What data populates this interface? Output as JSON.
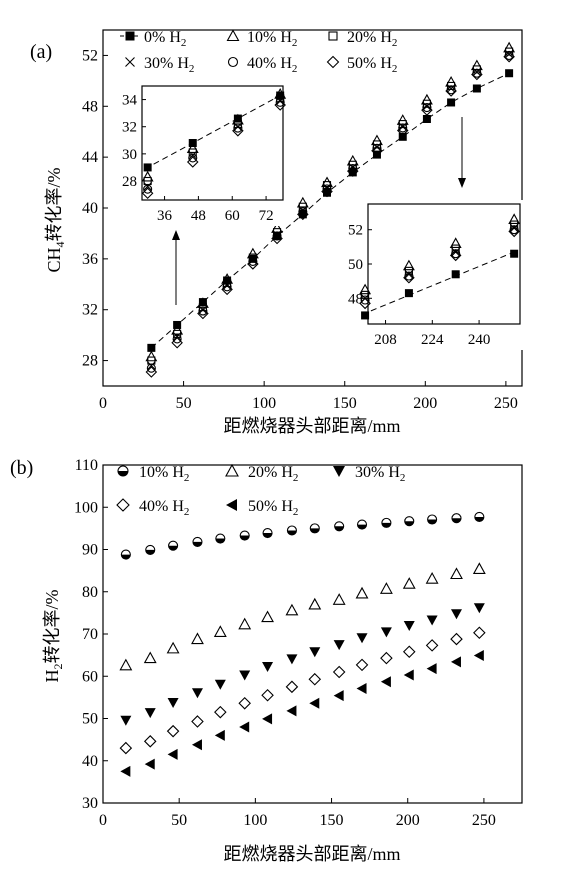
{
  "chart_data": [
    {
      "panel": "(a)",
      "type": "scatter",
      "xlabel": "距燃烧器头部距离/mm",
      "ylabel": "CH4转化率/%",
      "xlim": [
        0,
        260
      ],
      "ylim": [
        26,
        54
      ],
      "xticks": [
        0,
        50,
        100,
        150,
        200,
        250
      ],
      "yticks": [
        28,
        32,
        36,
        40,
        44,
        48,
        52
      ],
      "legend_placement": "top",
      "x": [
        30,
        46,
        62,
        77,
        93,
        108,
        124,
        139,
        155,
        170,
        186,
        201,
        216,
        232,
        252
      ],
      "series": [
        {
          "name": "0% H2",
          "marker": "square-filled",
          "fit_line": true,
          "values": [
            29.0,
            30.8,
            32.6,
            34.3,
            36.0,
            37.8,
            39.5,
            41.2,
            42.8,
            44.2,
            45.6,
            47.0,
            48.3,
            49.4,
            50.6
          ]
        },
        {
          "name": "10% H2",
          "marker": "triangle-open",
          "values": [
            28.3,
            30.4,
            32.5,
            34.4,
            36.4,
            38.4,
            40.4,
            42.0,
            43.7,
            45.3,
            46.9,
            48.5,
            49.9,
            51.2,
            52.6
          ]
        },
        {
          "name": "20% H2",
          "marker": "square-open",
          "values": [
            28.0,
            30.1,
            32.2,
            34.1,
            36.1,
            38.1,
            40.1,
            41.8,
            43.4,
            45.0,
            46.6,
            48.2,
            49.6,
            50.9,
            52.3
          ]
        },
        {
          "name": "30% H2",
          "marker": "x",
          "values": [
            27.6,
            29.9,
            32.0,
            33.9,
            35.9,
            37.9,
            39.8,
            41.6,
            43.2,
            44.8,
            46.4,
            48.0,
            49.4,
            50.7,
            52.1
          ]
        },
        {
          "name": "40% H2",
          "marker": "circle-open",
          "values": [
            27.4,
            29.7,
            31.9,
            33.8,
            35.8,
            37.8,
            39.7,
            41.5,
            43.1,
            44.7,
            46.3,
            47.9,
            49.3,
            50.6,
            52.0
          ]
        },
        {
          "name": "50% H2",
          "marker": "diamond-open",
          "values": [
            27.1,
            29.4,
            31.7,
            33.6,
            35.6,
            37.6,
            39.5,
            41.3,
            42.9,
            44.5,
            46.1,
            47.7,
            49.2,
            50.5,
            51.9
          ]
        }
      ],
      "insets": [
        {
          "position": "upper-left",
          "xlim": [
            28,
            78
          ],
          "ylim": [
            26.6,
            35.0
          ],
          "xticks": [
            36,
            48,
            60,
            72
          ],
          "yticks": [
            28,
            30,
            32,
            34
          ],
          "x_range_shown": [
            30,
            77
          ]
        },
        {
          "position": "lower-right",
          "xlim": [
            202,
            254
          ],
          "ylim": [
            46.5,
            53.5
          ],
          "xticks": [
            208,
            224,
            240
          ],
          "yticks": [
            48,
            50,
            52
          ],
          "x_range_shown": [
            201,
            252
          ]
        }
      ]
    },
    {
      "panel": "(b)",
      "type": "scatter",
      "xlabel": "距燃烧器头部距离/mm",
      "ylabel": "H2转化率/%",
      "xlim": [
        0,
        275
      ],
      "ylim": [
        30,
        110
      ],
      "xticks": [
        0,
        50,
        100,
        150,
        200,
        250
      ],
      "yticks": [
        30,
        40,
        50,
        60,
        70,
        80,
        90,
        100,
        110
      ],
      "legend_placement": "top",
      "x": [
        15,
        31,
        46,
        62,
        77,
        93,
        108,
        124,
        139,
        155,
        170,
        186,
        201,
        216,
        232,
        247
      ],
      "series": [
        {
          "name": "10% H2",
          "marker": "circle-half-filled",
          "values": [
            88.8,
            89.9,
            90.9,
            91.8,
            92.6,
            93.3,
            93.9,
            94.5,
            95.0,
            95.5,
            95.9,
            96.3,
            96.7,
            97.1,
            97.4,
            97.7
          ]
        },
        {
          "name": "20% H2",
          "marker": "triangle-open",
          "values": [
            62.6,
            64.3,
            66.6,
            68.8,
            70.5,
            72.3,
            74.0,
            75.6,
            77.0,
            78.1,
            79.6,
            80.7,
            81.9,
            83.1,
            84.2,
            85.4
          ]
        },
        {
          "name": "30% H2",
          "marker": "triangle-down-filled",
          "values": [
            49.6,
            51.4,
            53.8,
            56.1,
            58.1,
            60.3,
            62.3,
            64.1,
            65.8,
            67.5,
            69.1,
            70.5,
            72.0,
            73.3,
            74.8,
            76.2
          ]
        },
        {
          "name": "40% H2",
          "marker": "diamond-open",
          "values": [
            43.0,
            44.6,
            47.0,
            49.3,
            51.5,
            53.6,
            55.5,
            57.5,
            59.3,
            61.0,
            62.7,
            64.3,
            65.8,
            67.3,
            68.8,
            70.3
          ]
        },
        {
          "name": "50% H2",
          "marker": "triangle-left-filled",
          "values": [
            37.5,
            39.2,
            41.5,
            43.8,
            46.0,
            48.0,
            49.9,
            51.8,
            53.6,
            55.4,
            57.1,
            58.7,
            60.3,
            61.8,
            63.4,
            64.9
          ]
        }
      ]
    }
  ]
}
